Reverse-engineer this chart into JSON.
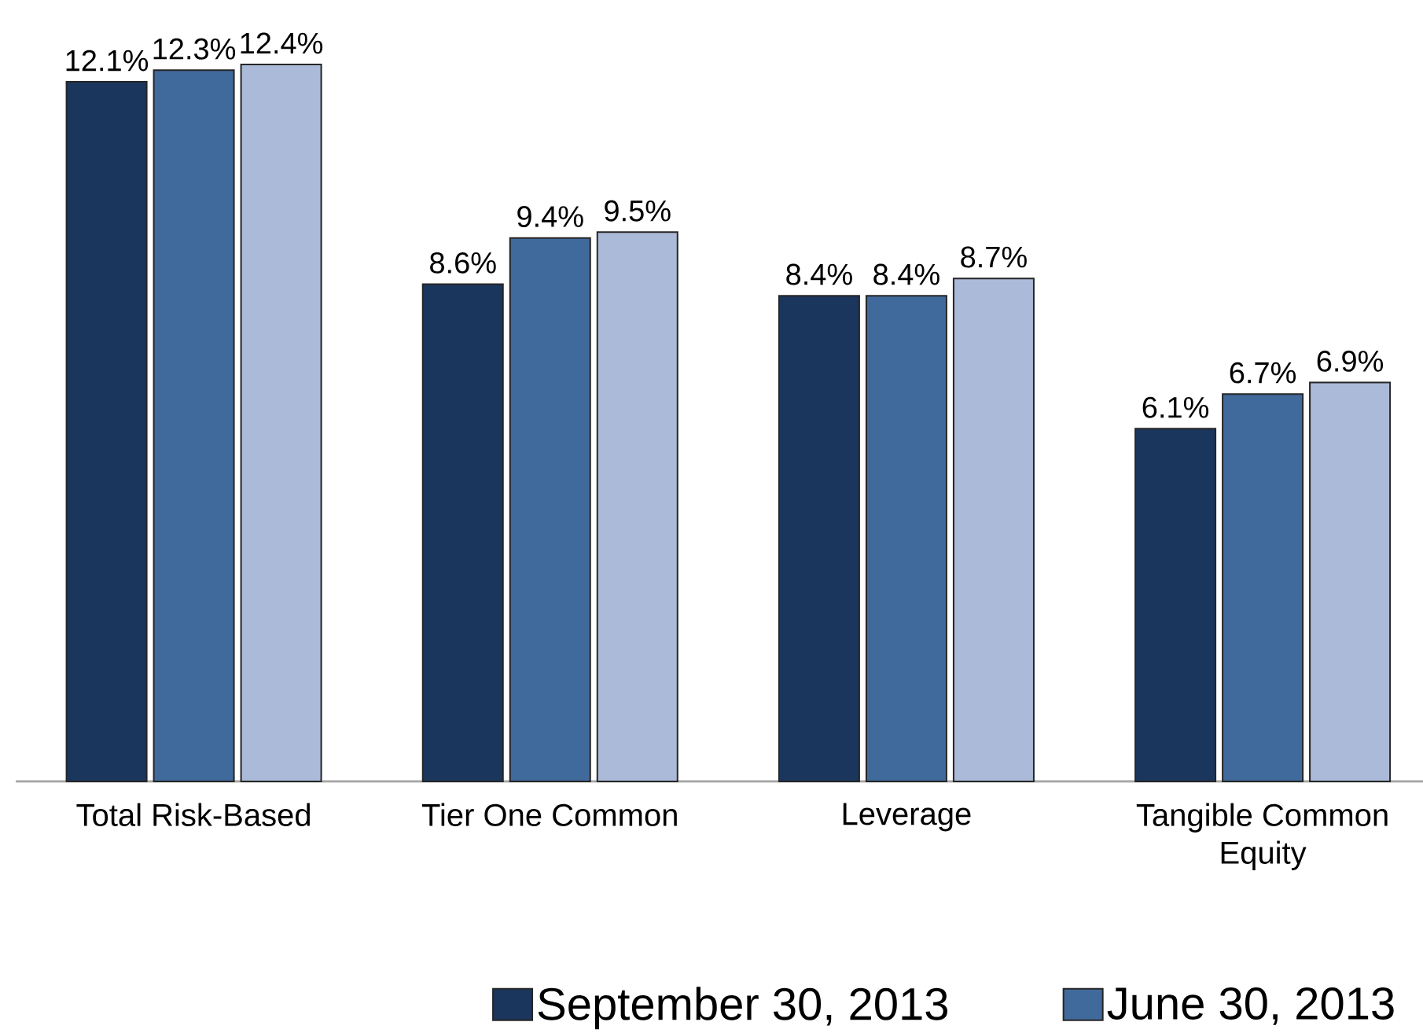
{
  "chart_data": {
    "type": "bar",
    "categories": [
      "Total Risk-Based",
      "Tier One Common",
      "Leverage",
      "Tangible Common Equity"
    ],
    "series": [
      {
        "name": "September 30, 2013",
        "color": "#1b365d",
        "values": [
          12.1,
          8.6,
          8.4,
          6.1
        ],
        "value_labels": [
          "12.1%",
          "8.6%",
          "8.4%",
          "6.1%"
        ]
      },
      {
        "name": "June 30, 2013",
        "color": "#416a9c",
        "values": [
          12.3,
          9.4,
          8.4,
          6.7
        ],
        "value_labels": [
          "12.3%",
          "9.4%",
          "8.4%",
          "6.7%"
        ]
      },
      {
        "color": "#abbad8",
        "values": [
          12.4,
          9.5,
          8.7,
          6.9
        ],
        "value_labels": [
          "12.4%",
          "9.5%",
          "8.7%",
          "6.9%"
        ]
      }
    ],
    "legend": "bottom"
  }
}
